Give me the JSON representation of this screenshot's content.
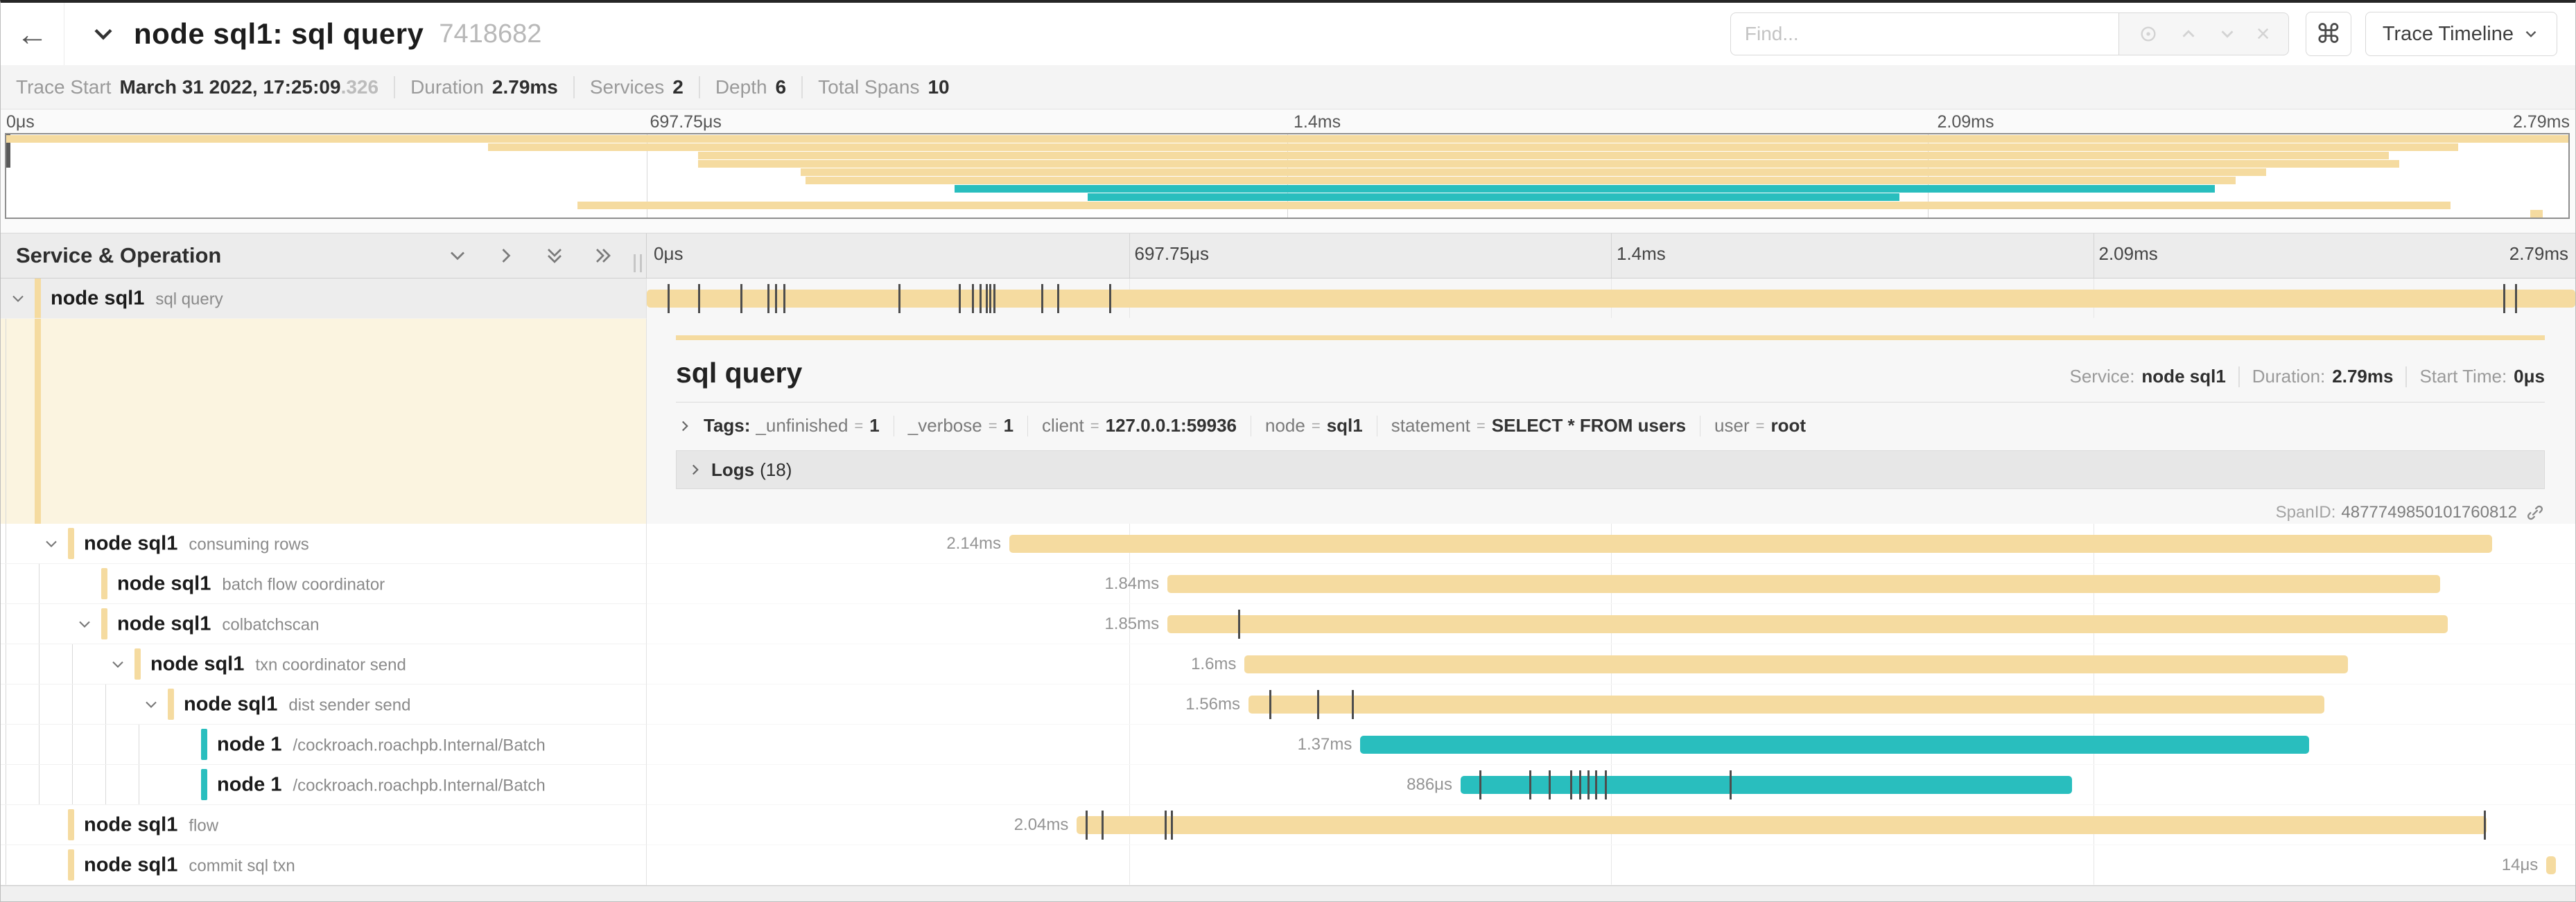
{
  "header": {
    "back_icon": "←",
    "title": "node sql1: sql query",
    "trace_id": "7418682",
    "find_placeholder": "Find...",
    "clear_icon": "×",
    "shortcut_key": "⌘",
    "view_button": "Trace Timeline"
  },
  "trace_info": {
    "items": [
      {
        "label": "Trace Start",
        "value": "March 31 2022, 17:25:09",
        "suffix": ".326"
      },
      {
        "label": "Duration",
        "value": "2.79ms"
      },
      {
        "label": "Services",
        "value": "2"
      },
      {
        "label": "Depth",
        "value": "6"
      },
      {
        "label": "Total Spans",
        "value": "10"
      }
    ]
  },
  "timeline": {
    "ticks": [
      "0μs",
      "697.75μs",
      "1.4ms",
      "2.09ms",
      "2.79ms"
    ]
  },
  "columns": {
    "left_header": "Service & Operation"
  },
  "colors": {
    "tan": "#F5DBA0",
    "teal": "#29BEBE",
    "selected_tint": "#FBF4E0",
    "tick": "#4d4d4d"
  },
  "spans": [
    {
      "service": "node sql1",
      "operation": "sql query",
      "depth": 0,
      "has_children": true,
      "color": "tan",
      "start": 0.0,
      "end": 1.0,
      "duration_label": "",
      "ticks": [
        0.011,
        0.027,
        0.049,
        0.063,
        0.067,
        0.071,
        0.131,
        0.162,
        0.169,
        0.173,
        0.176,
        0.178,
        0.18,
        0.205,
        0.213,
        0.24,
        0.963,
        0.969
      ],
      "selected": true
    },
    {
      "service": "node sql1",
      "operation": "consuming rows",
      "depth": 1,
      "has_children": true,
      "color": "tan",
      "start": 0.188,
      "end": 0.957,
      "duration_label": "2.14ms",
      "ticks": []
    },
    {
      "service": "node sql1",
      "operation": "batch flow coordinator",
      "depth": 2,
      "has_children": false,
      "color": "tan",
      "start": 0.27,
      "end": 0.93,
      "duration_label": "1.84ms",
      "ticks": []
    },
    {
      "service": "node sql1",
      "operation": "colbatchscan",
      "depth": 2,
      "has_children": true,
      "color": "tan",
      "start": 0.27,
      "end": 0.934,
      "duration_label": "1.85ms",
      "ticks": [
        0.307
      ]
    },
    {
      "service": "node sql1",
      "operation": "txn coordinator send",
      "depth": 3,
      "has_children": true,
      "color": "tan",
      "start": 0.31,
      "end": 0.882,
      "duration_label": "1.6ms",
      "ticks": []
    },
    {
      "service": "node sql1",
      "operation": "dist sender send",
      "depth": 4,
      "has_children": true,
      "color": "tan",
      "start": 0.312,
      "end": 0.87,
      "duration_label": "1.56ms",
      "ticks": [
        0.323,
        0.348,
        0.366
      ]
    },
    {
      "service": "node 1",
      "operation": "/cockroach.roachpb.Internal/Batch",
      "depth": 5,
      "has_children": false,
      "color": "teal",
      "start": 0.37,
      "end": 0.862,
      "duration_label": "1.37ms",
      "ticks": []
    },
    {
      "service": "node 1",
      "operation": "/cockroach.roachpb.Internal/Batch",
      "depth": 5,
      "has_children": false,
      "color": "teal",
      "start": 0.422,
      "end": 0.739,
      "duration_label": "886μs",
      "ticks": [
        0.432,
        0.458,
        0.468,
        0.479,
        0.484,
        0.488,
        0.492,
        0.497,
        0.562
      ]
    },
    {
      "service": "node sql1",
      "operation": "flow",
      "depth": 1,
      "has_children": false,
      "color": "tan",
      "start": 0.223,
      "end": 0.954,
      "duration_label": "2.04ms",
      "ticks": [
        0.228,
        0.236,
        0.269,
        0.272,
        0.953
      ]
    },
    {
      "service": "node sql1",
      "operation": "commit sql txn",
      "depth": 1,
      "has_children": false,
      "color": "tan",
      "start": 0.985,
      "end": 0.99,
      "duration_label": "14μs",
      "ticks": []
    }
  ],
  "detail": {
    "title": "sql query",
    "meta": [
      {
        "label": "Service:",
        "value": "node sql1"
      },
      {
        "label": "Duration:",
        "value": "2.79ms"
      },
      {
        "label": "Start Time:",
        "value": "0μs"
      }
    ],
    "tags_label": "Tags:",
    "tags": [
      {
        "key": "_unfinished",
        "value": "1"
      },
      {
        "key": "_verbose",
        "value": "1"
      },
      {
        "key": "client",
        "value": "127.0.0.1:59936"
      },
      {
        "key": "node",
        "value": "sql1"
      },
      {
        "key": "statement",
        "value": "SELECT * FROM users"
      },
      {
        "key": "user",
        "value": "root"
      }
    ],
    "logs_label": "Logs",
    "logs_count": "(18)",
    "span_id_label": "SpanID:",
    "span_id": "4877749850101760812"
  }
}
